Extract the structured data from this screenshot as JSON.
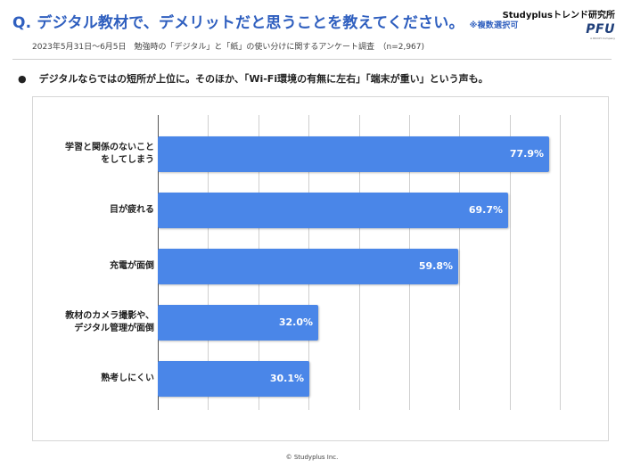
{
  "header": {
    "question": "Q. デジタル教材で、デメリットだと思うことを教えてください。",
    "note": "※複数選択可",
    "brand": "Studyplusトレンド研究所",
    "logo": "PFU",
    "logo_sub": "A RICOH Company"
  },
  "survey_info": "2023年5月31日〜6月5日　勉強時の「デジタル」と「紙」の使い分けに関するアンケート調査　（n=2,967)",
  "summary": {
    "bullet": "●",
    "text": "デジタルならではの短所が上位に。そのほか、「Wi-Fi環境の有無に左右」「端末が重い」という声も。"
  },
  "chart_data": {
    "type": "bar",
    "orientation": "horizontal",
    "categories": [
      [
        "学習と関係のないこと",
        "をしてしまう"
      ],
      [
        "目が疲れる"
      ],
      [
        "充電が面倒"
      ],
      [
        "教材のカメラ撮影や、",
        "デジタル管理が面倒"
      ],
      [
        "熟考しにくい"
      ]
    ],
    "values": [
      77.9,
      69.7,
      59.8,
      32.0,
      30.1
    ],
    "value_labels": [
      "77.9%",
      "69.7%",
      "59.8%",
      "32.0%",
      "30.1%"
    ],
    "xlim": [
      0,
      80
    ],
    "grid": true,
    "unit": "%"
  },
  "colors": {
    "bar": "#4a86e8",
    "title": "#2f5fbf"
  },
  "footer": "© Studyplus Inc."
}
